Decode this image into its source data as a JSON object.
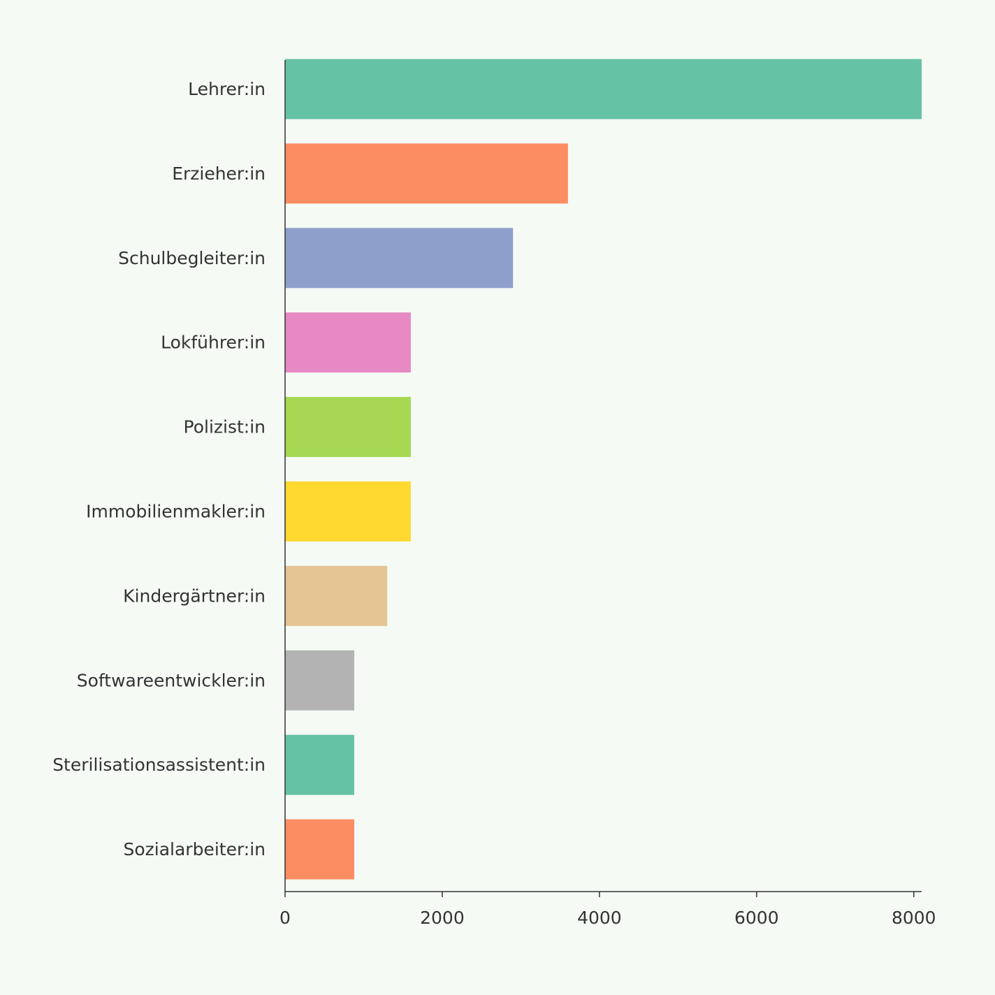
{
  "chart_data": {
    "type": "bar",
    "orientation": "horizontal",
    "title": "",
    "xlabel": "",
    "ylabel": "",
    "categories": [
      "Lehrer:in",
      "Erzieher:in",
      "Schulbegleiter:in",
      "Lokführer:in",
      "Polizist:in",
      "Immobilienmakler:in",
      "Kindergärtner:in",
      "Softwareentwickler:in",
      "Sterilisationsassistent:in",
      "Sozialarbeiter:in"
    ],
    "values": [
      8100,
      3600,
      2900,
      1600,
      1600,
      1600,
      1300,
      880,
      880,
      880
    ],
    "colors": [
      "#66c2a5",
      "#fc8d62",
      "#8da0cb",
      "#e78ac3",
      "#a6d854",
      "#ffd92f",
      "#e5c494",
      "#b3b3b3",
      "#66c2a5",
      "#fc8d62"
    ],
    "xlim": [
      0,
      8100
    ],
    "xticks": [
      "0",
      "2000",
      "4000",
      "6000",
      "8000"
    ],
    "xtick_values": [
      0,
      2000,
      4000,
      6000,
      8000
    ],
    "grid": false,
    "legend": "none"
  }
}
